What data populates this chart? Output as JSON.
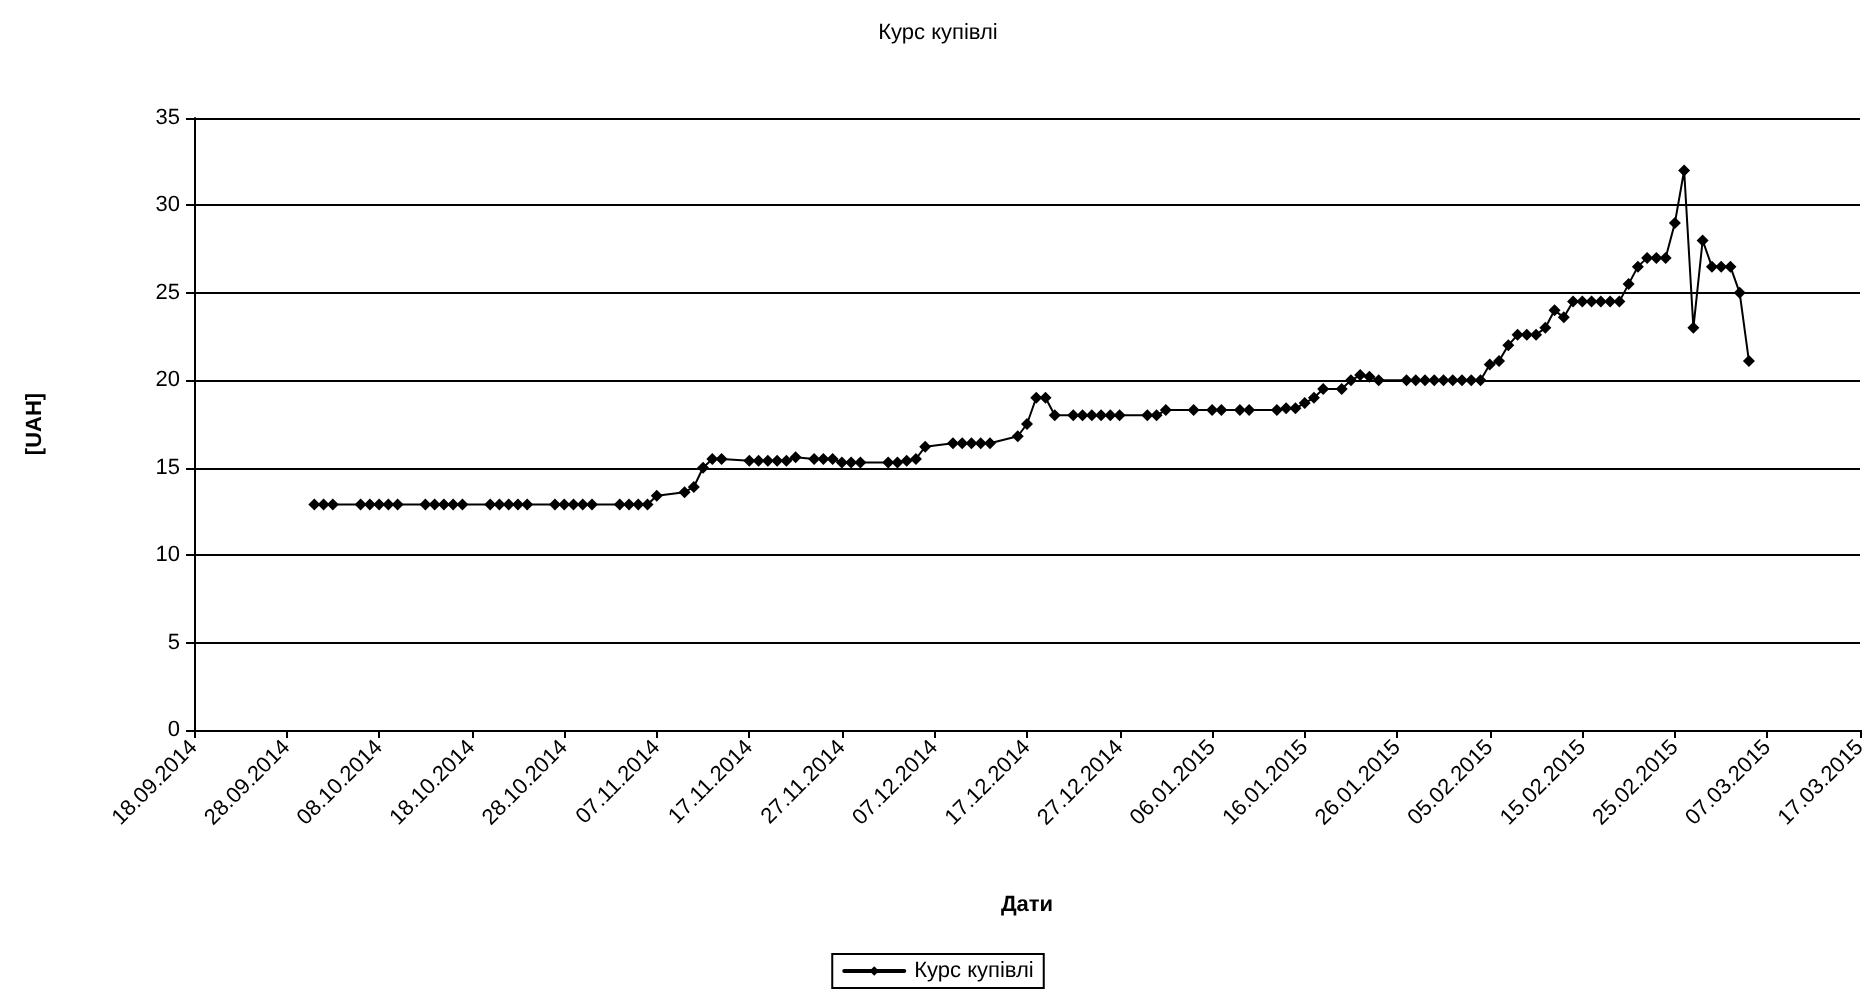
{
  "chart_data": {
    "type": "line",
    "title": "Курс купівлі",
    "xlabel": "Дати",
    "ylabel": "[UAH]",
    "x": [
      "2014-10-01",
      "2014-10-02",
      "2014-10-03",
      "2014-10-06",
      "2014-10-07",
      "2014-10-08",
      "2014-10-09",
      "2014-10-10",
      "2014-10-13",
      "2014-10-14",
      "2014-10-15",
      "2014-10-16",
      "2014-10-17",
      "2014-10-20",
      "2014-10-21",
      "2014-10-22",
      "2014-10-23",
      "2014-10-24",
      "2014-10-27",
      "2014-10-28",
      "2014-10-29",
      "2014-10-30",
      "2014-10-31",
      "2014-11-03",
      "2014-11-04",
      "2014-11-05",
      "2014-11-06",
      "2014-11-07",
      "2014-11-10",
      "2014-11-11",
      "2014-11-12",
      "2014-11-13",
      "2014-11-14",
      "2014-11-17",
      "2014-11-18",
      "2014-11-19",
      "2014-11-20",
      "2014-11-21",
      "2014-11-22",
      "2014-11-24",
      "2014-11-25",
      "2014-11-26",
      "2014-11-27",
      "2014-11-28",
      "2014-11-29",
      "2014-12-02",
      "2014-12-03",
      "2014-12-04",
      "2014-12-05",
      "2014-12-06",
      "2014-12-09",
      "2014-12-10",
      "2014-12-11",
      "2014-12-12",
      "2014-12-13",
      "2014-12-16",
      "2014-12-17",
      "2014-12-18",
      "2014-12-19",
      "2014-12-20",
      "2014-12-22",
      "2014-12-23",
      "2014-12-24",
      "2014-12-25",
      "2014-12-26",
      "2014-12-27",
      "2014-12-30",
      "2014-12-31",
      "2015-01-01",
      "2015-01-04",
      "2015-01-06",
      "2015-01-07",
      "2015-01-09",
      "2015-01-10",
      "2015-01-13",
      "2015-01-14",
      "2015-01-15",
      "2015-01-16",
      "2015-01-17",
      "2015-01-18",
      "2015-01-20",
      "2015-01-21",
      "2015-01-22",
      "2015-01-23",
      "2015-01-24",
      "2015-01-27",
      "2015-01-28",
      "2015-01-29",
      "2015-01-30",
      "2015-01-31",
      "2015-02-01",
      "2015-02-02",
      "2015-02-03",
      "2015-02-04",
      "2015-02-05",
      "2015-02-06",
      "2015-02-07",
      "2015-02-08",
      "2015-02-09",
      "2015-02-10",
      "2015-02-11",
      "2015-02-12",
      "2015-02-13",
      "2015-02-14",
      "2015-02-15",
      "2015-02-16",
      "2015-02-17",
      "2015-02-18",
      "2015-02-19",
      "2015-02-20",
      "2015-02-21",
      "2015-02-22",
      "2015-02-23",
      "2015-02-24",
      "2015-02-25",
      "2015-02-26",
      "2015-02-27",
      "2015-02-28",
      "2015-03-01",
      "2015-03-02",
      "2015-03-03",
      "2015-03-04",
      "2015-03-05"
    ],
    "series": [
      {
        "name": "Курс купівлі",
        "color": "#000000",
        "values": [
          12.9,
          12.9,
          12.9,
          12.9,
          12.9,
          12.9,
          12.9,
          12.9,
          12.9,
          12.9,
          12.9,
          12.9,
          12.9,
          12.9,
          12.9,
          12.9,
          12.9,
          12.9,
          12.9,
          12.9,
          12.9,
          12.9,
          12.9,
          12.9,
          12.9,
          12.9,
          12.9,
          13.4,
          13.6,
          13.9,
          15.0,
          15.5,
          15.5,
          15.4,
          15.4,
          15.4,
          15.4,
          15.4,
          15.6,
          15.5,
          15.5,
          15.5,
          15.3,
          15.3,
          15.3,
          15.3,
          15.3,
          15.4,
          15.5,
          16.2,
          16.4,
          16.4,
          16.4,
          16.4,
          16.4,
          16.8,
          17.5,
          19.0,
          19.0,
          18.0,
          18.0,
          18.0,
          18.0,
          18.0,
          18.0,
          18.0,
          18.0,
          18.0,
          18.3,
          18.3,
          18.3,
          18.3,
          18.3,
          18.3,
          18.3,
          18.4,
          18.4,
          18.7,
          19.0,
          19.5,
          19.5,
          20.0,
          20.3,
          20.2,
          20.0,
          20.0,
          20.0,
          20.0,
          20.0,
          20.0,
          20.0,
          20.0,
          20.0,
          20.0,
          20.9,
          21.1,
          22.0,
          22.6,
          22.6,
          22.6,
          23.0,
          24.0,
          23.6,
          24.5,
          24.5,
          24.5,
          24.5,
          24.5,
          24.5,
          25.5,
          26.5,
          27.0,
          27.0,
          27.0,
          29.0,
          32.0,
          23.0,
          28.0,
          26.5,
          26.5,
          26.5,
          25.0,
          21.1
        ]
      }
    ],
    "xlim": [
      "2014-09-18",
      "2015-03-17"
    ],
    "xticks": [
      {
        "value": "2014-09-18",
        "label": "18.09.2014"
      },
      {
        "value": "2014-09-28",
        "label": "28.09.2014"
      },
      {
        "value": "2014-10-08",
        "label": "08.10.2014"
      },
      {
        "value": "2014-10-18",
        "label": "18.10.2014"
      },
      {
        "value": "2014-10-28",
        "label": "28.10.2014"
      },
      {
        "value": "2014-11-07",
        "label": "07.11.2014"
      },
      {
        "value": "2014-11-17",
        "label": "17.11.2014"
      },
      {
        "value": "2014-11-27",
        "label": "27.11.2014"
      },
      {
        "value": "2014-12-07",
        "label": "07.12.2014"
      },
      {
        "value": "2014-12-17",
        "label": "17.12.2014"
      },
      {
        "value": "2014-12-27",
        "label": "27.12.2014"
      },
      {
        "value": "2015-01-06",
        "label": "06.01.2015"
      },
      {
        "value": "2015-01-16",
        "label": "16.01.2015"
      },
      {
        "value": "2015-01-26",
        "label": "26.01.2015"
      },
      {
        "value": "2015-02-05",
        "label": "05.02.2015"
      },
      {
        "value": "2015-02-15",
        "label": "15.02.2015"
      },
      {
        "value": "2015-02-25",
        "label": "25.02.2015"
      },
      {
        "value": "2015-03-07",
        "label": "07.03.2015"
      },
      {
        "value": "2015-03-17",
        "label": "17.03.2015"
      }
    ],
    "ylim": [
      0,
      35
    ],
    "yticks": [
      0,
      5,
      10,
      15,
      20,
      25,
      30,
      35
    ],
    "grid": "y",
    "legend": "bottom",
    "marker": "diamond",
    "line_style": "solid"
  }
}
